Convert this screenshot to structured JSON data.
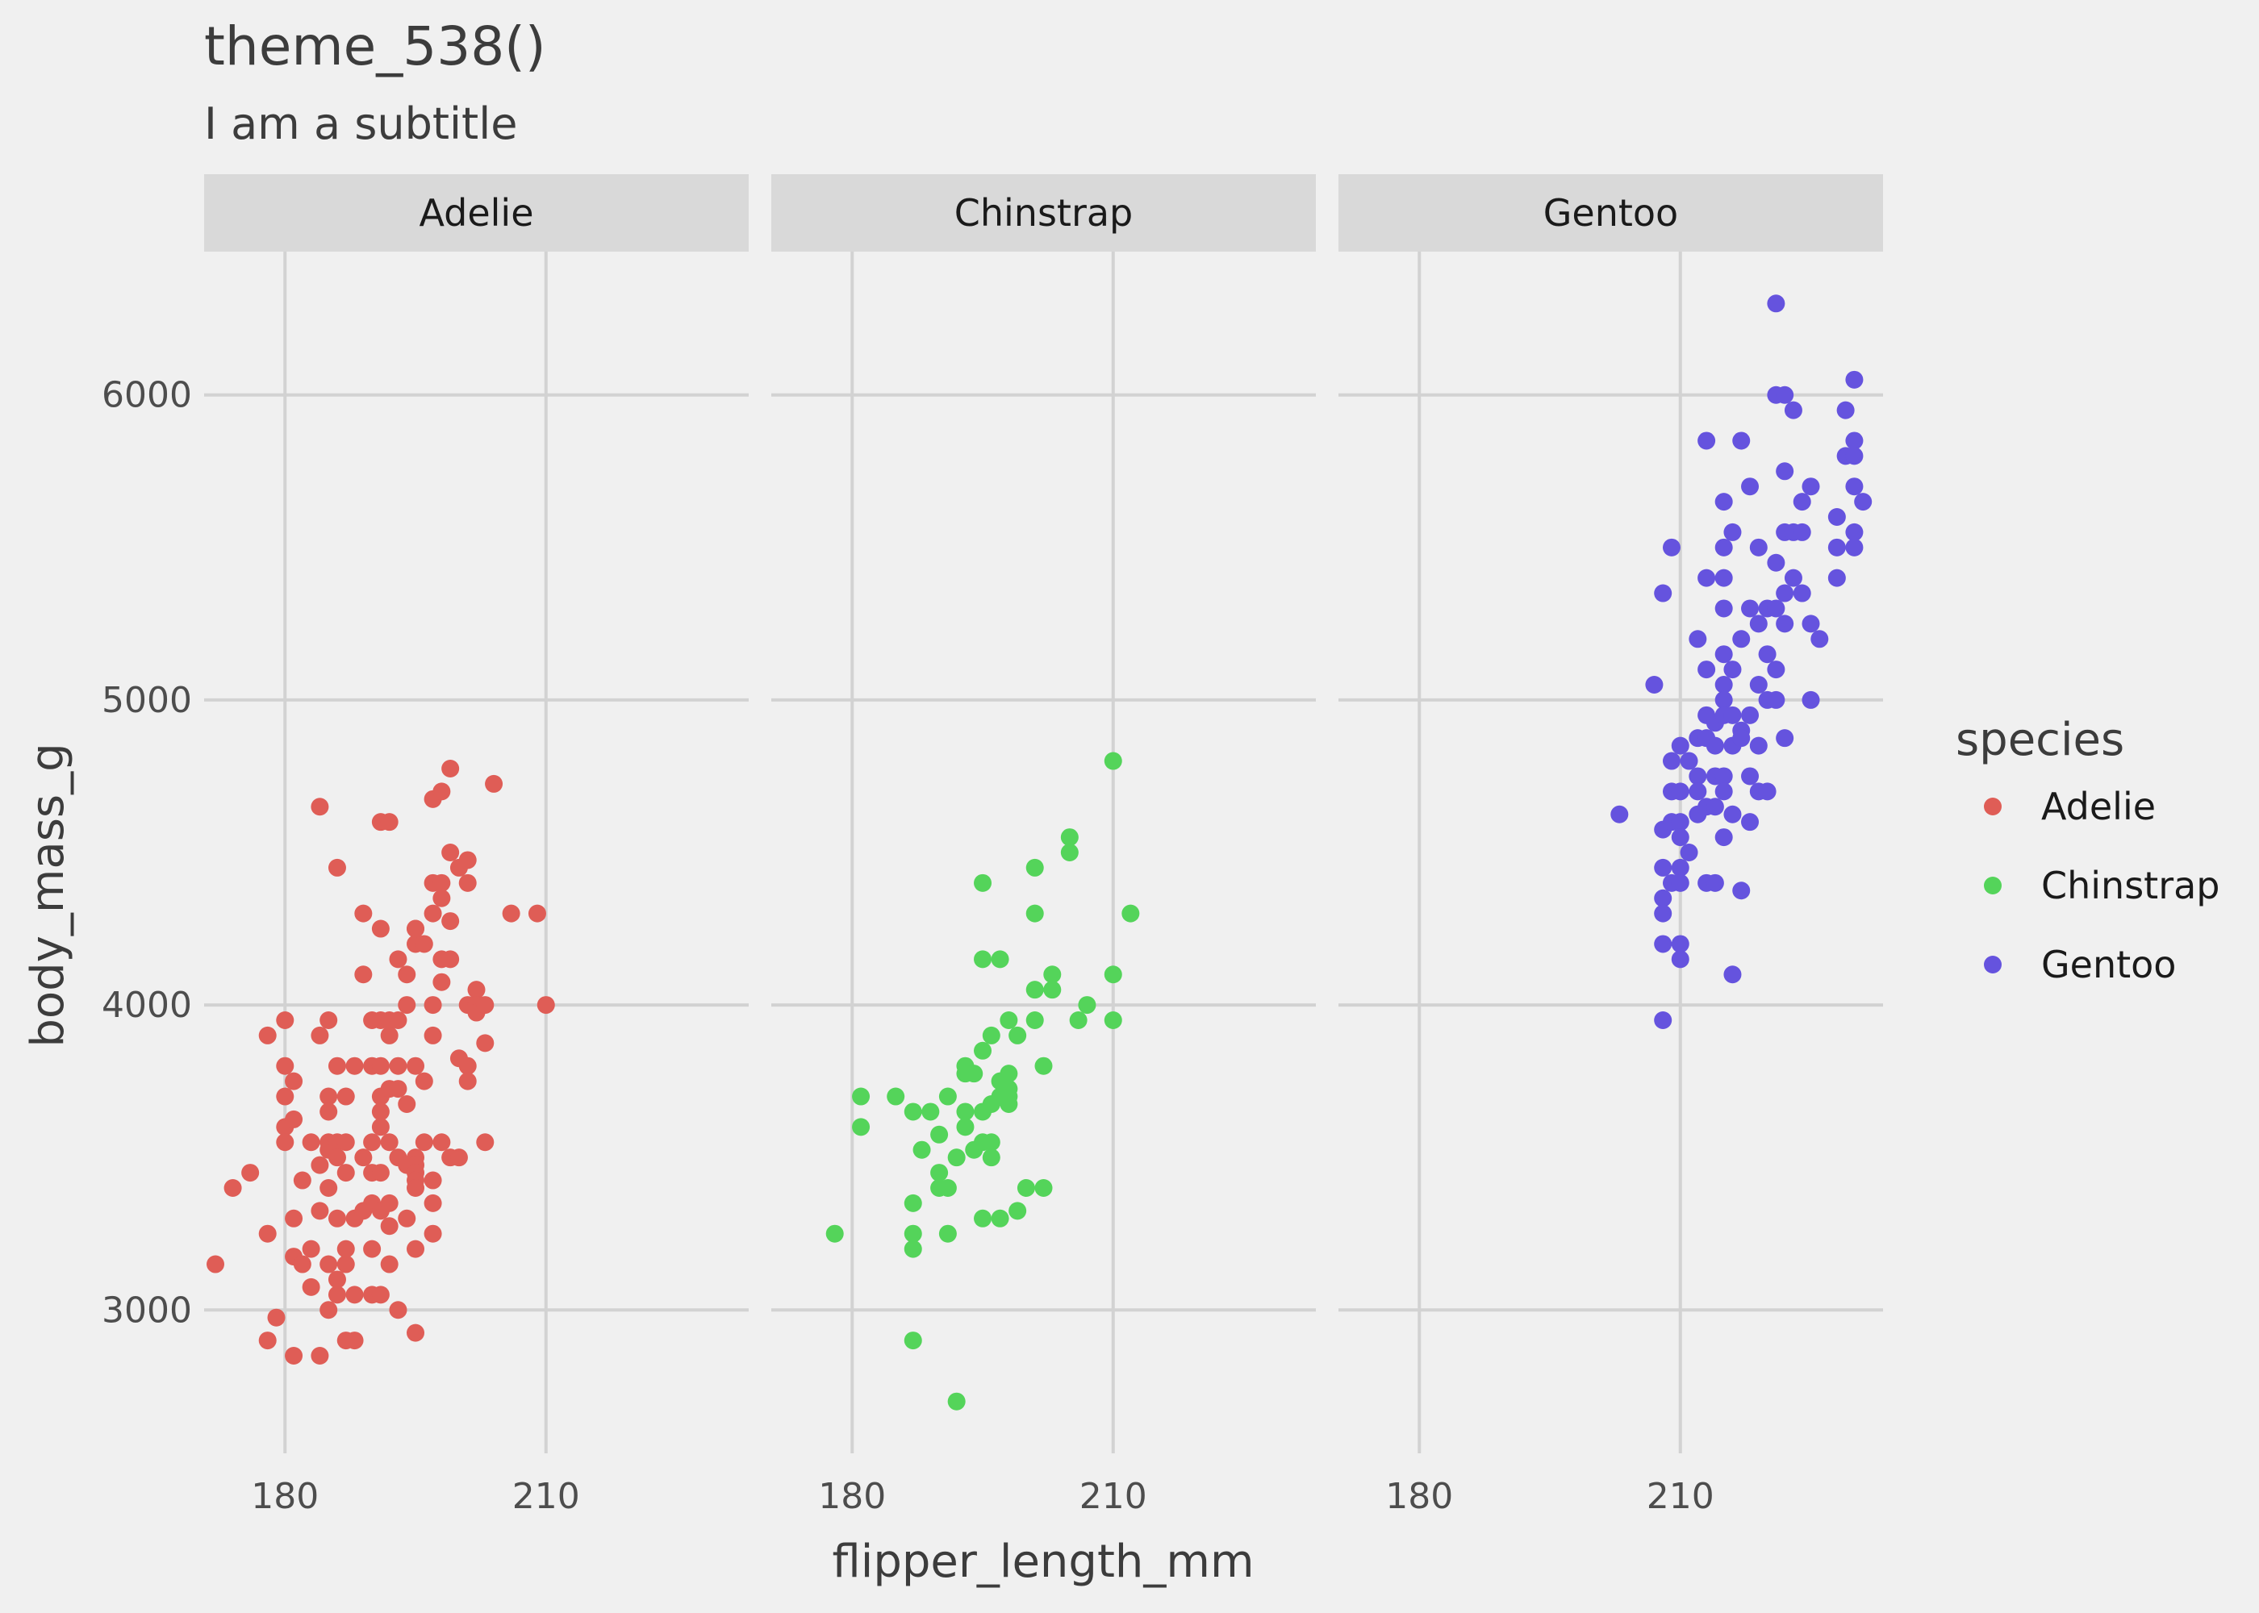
{
  "chart_data": {
    "type": "scatter",
    "title": "theme_538()",
    "subtitle": "I am a subtitle",
    "xlabel": "flipper_length_mm",
    "ylabel": "body_mass_g",
    "xlim": [
      170.7,
      233.3
    ],
    "ylim": [
      2530,
      6470
    ],
    "x_ticks": [
      180,
      210
    ],
    "y_ticks": [
      3000,
      4000,
      5000,
      6000
    ],
    "grid": true,
    "legend": {
      "title": "species",
      "position": "right",
      "entries": [
        {
          "label": "Adelie",
          "color": "#df5d56"
        },
        {
          "label": "Chinstrap",
          "color": "#54d45a"
        },
        {
          "label": "Gentoo",
          "color": "#6553de"
        }
      ]
    },
    "facets": [
      {
        "name": "Adelie",
        "color": "#df5d56",
        "points": [
          [
            172,
            3150
          ],
          [
            174,
            3400
          ],
          [
            176,
            3450
          ],
          [
            178,
            3250
          ],
          [
            178,
            2900
          ],
          [
            178,
            3900
          ],
          [
            179,
            2975
          ],
          [
            180,
            3950
          ],
          [
            180,
            3800
          ],
          [
            180,
            3700
          ],
          [
            180,
            3600
          ],
          [
            180,
            3550
          ],
          [
            181,
            3625
          ],
          [
            181,
            3750
          ],
          [
            181,
            3300
          ],
          [
            181,
            3175
          ],
          [
            181,
            2850
          ],
          [
            182,
            3425
          ],
          [
            182,
            3150
          ],
          [
            183,
            3200
          ],
          [
            183,
            3550
          ],
          [
            183,
            3075
          ],
          [
            184,
            3325
          ],
          [
            184,
            3475
          ],
          [
            184,
            3900
          ],
          [
            184,
            4650
          ],
          [
            184,
            2850
          ],
          [
            185,
            3550
          ],
          [
            185,
            3950
          ],
          [
            185,
            3700
          ],
          [
            185,
            3650
          ],
          [
            185,
            3525
          ],
          [
            185,
            3400
          ],
          [
            185,
            3150
          ],
          [
            185,
            3000
          ],
          [
            186,
            3050
          ],
          [
            186,
            4450
          ],
          [
            186,
            3800
          ],
          [
            186,
            3550
          ],
          [
            186,
            3500
          ],
          [
            186,
            3300
          ],
          [
            186,
            3100
          ],
          [
            187,
            3150
          ],
          [
            187,
            3550
          ],
          [
            187,
            3450
          ],
          [
            187,
            3200
          ],
          [
            187,
            2900
          ],
          [
            187,
            3700
          ],
          [
            188,
            3800
          ],
          [
            188,
            3300
          ],
          [
            188,
            3050
          ],
          [
            188,
            2900
          ],
          [
            189,
            4300
          ],
          [
            189,
            4100
          ],
          [
            189,
            3500
          ],
          [
            189,
            3325
          ],
          [
            190,
            3950
          ],
          [
            190,
            3800
          ],
          [
            190,
            3550
          ],
          [
            190,
            3450
          ],
          [
            190,
            3350
          ],
          [
            190,
            3200
          ],
          [
            190,
            3050
          ],
          [
            191,
            4600
          ],
          [
            191,
            4250
          ],
          [
            191,
            3950
          ],
          [
            191,
            3800
          ],
          [
            191,
            3700
          ],
          [
            191,
            3650
          ],
          [
            191,
            3600
          ],
          [
            191,
            3450
          ],
          [
            191,
            3325
          ],
          [
            191,
            3050
          ],
          [
            192,
            4600
          ],
          [
            192,
            3950
          ],
          [
            192,
            3900
          ],
          [
            192,
            3725
          ],
          [
            192,
            3550
          ],
          [
            192,
            3350
          ],
          [
            192,
            3275
          ],
          [
            192,
            3150
          ],
          [
            193,
            4150
          ],
          [
            193,
            3950
          ],
          [
            193,
            3800
          ],
          [
            193,
            3725
          ],
          [
            193,
            3500
          ],
          [
            193,
            3000
          ],
          [
            194,
            4100
          ],
          [
            194,
            4000
          ],
          [
            194,
            3675
          ],
          [
            194,
            3475
          ],
          [
            194,
            3300
          ],
          [
            195,
            4250
          ],
          [
            195,
            4200
          ],
          [
            195,
            4250
          ],
          [
            195,
            3800
          ],
          [
            195,
            3500
          ],
          [
            195,
            3475
          ],
          [
            195,
            3450
          ],
          [
            195,
            3425
          ],
          [
            195,
            3400
          ],
          [
            195,
            3200
          ],
          [
            195,
            2925
          ],
          [
            196,
            4200
          ],
          [
            196,
            3750
          ],
          [
            196,
            3550
          ],
          [
            197,
            4675
          ],
          [
            197,
            4400
          ],
          [
            197,
            4300
          ],
          [
            197,
            4000
          ],
          [
            197,
            3900
          ],
          [
            197,
            3425
          ],
          [
            197,
            3350
          ],
          [
            197,
            3250
          ],
          [
            198,
            4700
          ],
          [
            198,
            4400
          ],
          [
            198,
            4350
          ],
          [
            198,
            4150
          ],
          [
            198,
            4075
          ],
          [
            198,
            3550
          ],
          [
            199,
            4775
          ],
          [
            199,
            4500
          ],
          [
            199,
            4275
          ],
          [
            199,
            4150
          ],
          [
            199,
            3500
          ],
          [
            200,
            4450
          ],
          [
            200,
            3825
          ],
          [
            200,
            3500
          ],
          [
            201,
            4475
          ],
          [
            201,
            4400
          ],
          [
            201,
            4000
          ],
          [
            201,
            3800
          ],
          [
            201,
            3750
          ],
          [
            202,
            4050
          ],
          [
            202,
            4000
          ],
          [
            202,
            3975
          ],
          [
            203,
            4000
          ],
          [
            203,
            3875
          ],
          [
            203,
            3550
          ],
          [
            204,
            4725
          ],
          [
            206,
            4300
          ],
          [
            209,
            4300
          ],
          [
            210,
            4000
          ]
        ]
      },
      {
        "name": "Chinstrap",
        "color": "#54d45a",
        "points": [
          [
            178,
            3250
          ],
          [
            181,
            3700
          ],
          [
            181,
            3600
          ],
          [
            185,
            3700
          ],
          [
            187,
            3650
          ],
          [
            187,
            3350
          ],
          [
            187,
            3250
          ],
          [
            187,
            3200
          ],
          [
            187,
            2900
          ],
          [
            188,
            3525
          ],
          [
            189,
            3650
          ],
          [
            190,
            3575
          ],
          [
            190,
            3450
          ],
          [
            190,
            3400
          ],
          [
            191,
            3700
          ],
          [
            191,
            3400
          ],
          [
            191,
            3250
          ],
          [
            192,
            2700
          ],
          [
            192,
            3500
          ],
          [
            193,
            3800
          ],
          [
            193,
            3775
          ],
          [
            193,
            3650
          ],
          [
            193,
            3600
          ],
          [
            194,
            3775
          ],
          [
            194,
            3525
          ],
          [
            195,
            4400
          ],
          [
            195,
            4150
          ],
          [
            195,
            3850
          ],
          [
            195,
            3650
          ],
          [
            195,
            3550
          ],
          [
            195,
            3300
          ],
          [
            196,
            3900
          ],
          [
            196,
            3550
          ],
          [
            196,
            3500
          ],
          [
            196,
            3675
          ],
          [
            197,
            4150
          ],
          [
            197,
            3750
          ],
          [
            197,
            3700
          ],
          [
            197,
            3300
          ],
          [
            198,
            3950
          ],
          [
            198,
            3775
          ],
          [
            198,
            3725
          ],
          [
            198,
            3700
          ],
          [
            198,
            3675
          ],
          [
            199,
            3900
          ],
          [
            199,
            3325
          ],
          [
            200,
            3400
          ],
          [
            201,
            4450
          ],
          [
            201,
            4300
          ],
          [
            201,
            4050
          ],
          [
            201,
            3950
          ],
          [
            202,
            3800
          ],
          [
            202,
            3400
          ],
          [
            203,
            4100
          ],
          [
            203,
            4050
          ],
          [
            205,
            4550
          ],
          [
            205,
            4500
          ],
          [
            206,
            3950
          ],
          [
            207,
            4000
          ],
          [
            210,
            4800
          ],
          [
            210,
            4100
          ],
          [
            210,
            3950
          ],
          [
            212,
            4300
          ]
        ]
      },
      {
        "name": "Gentoo",
        "color": "#6553de",
        "points": [
          [
            203,
            4625
          ],
          [
            207,
            5050
          ],
          [
            208,
            5350
          ],
          [
            208,
            4575
          ],
          [
            208,
            4450
          ],
          [
            208,
            4350
          ],
          [
            208,
            4300
          ],
          [
            208,
            4200
          ],
          [
            208,
            3950
          ],
          [
            209,
            5500
          ],
          [
            209,
            4800
          ],
          [
            209,
            4700
          ],
          [
            209,
            4600
          ],
          [
            209,
            4400
          ],
          [
            210,
            4850
          ],
          [
            210,
            4700
          ],
          [
            210,
            4600
          ],
          [
            210,
            4550
          ],
          [
            210,
            4450
          ],
          [
            210,
            4400
          ],
          [
            210,
            4200
          ],
          [
            210,
            4150
          ],
          [
            211,
            4800
          ],
          [
            211,
            4500
          ],
          [
            212,
            5200
          ],
          [
            212,
            4875
          ],
          [
            212,
            4750
          ],
          [
            212,
            4700
          ],
          [
            212,
            4625
          ],
          [
            213,
            5850
          ],
          [
            213,
            5400
          ],
          [
            213,
            5100
          ],
          [
            213,
            4950
          ],
          [
            213,
            4875
          ],
          [
            213,
            4650
          ],
          [
            213,
            4400
          ],
          [
            214,
            4925
          ],
          [
            214,
            4850
          ],
          [
            214,
            4750
          ],
          [
            214,
            4650
          ],
          [
            214,
            4400
          ],
          [
            215,
            5650
          ],
          [
            215,
            5500
          ],
          [
            215,
            5400
          ],
          [
            215,
            5300
          ],
          [
            215,
            5150
          ],
          [
            215,
            5050
          ],
          [
            215,
            5000
          ],
          [
            215,
            4950
          ],
          [
            215,
            4750
          ],
          [
            215,
            4700
          ],
          [
            215,
            4550
          ],
          [
            216,
            5550
          ],
          [
            216,
            5100
          ],
          [
            216,
            4950
          ],
          [
            216,
            4850
          ],
          [
            216,
            4625
          ],
          [
            216,
            4100
          ],
          [
            217,
            5850
          ],
          [
            217,
            5200
          ],
          [
            217,
            4900
          ],
          [
            217,
            4875
          ],
          [
            217,
            4375
          ],
          [
            218,
            5700
          ],
          [
            218,
            5300
          ],
          [
            218,
            4950
          ],
          [
            218,
            4750
          ],
          [
            218,
            4600
          ],
          [
            219,
            5500
          ],
          [
            219,
            5250
          ],
          [
            219,
            5050
          ],
          [
            219,
            4850
          ],
          [
            219,
            4700
          ],
          [
            220,
            5300
          ],
          [
            220,
            5150
          ],
          [
            220,
            5000
          ],
          [
            220,
            4700
          ],
          [
            221,
            6300
          ],
          [
            221,
            6000
          ],
          [
            221,
            5450
          ],
          [
            221,
            5300
          ],
          [
            221,
            5100
          ],
          [
            221,
            5000
          ],
          [
            222,
            6000
          ],
          [
            222,
            5750
          ],
          [
            222,
            5550
          ],
          [
            222,
            5350
          ],
          [
            222,
            5250
          ],
          [
            222,
            4875
          ],
          [
            223,
            5950
          ],
          [
            223,
            5550
          ],
          [
            223,
            5400
          ],
          [
            224,
            5650
          ],
          [
            224,
            5550
          ],
          [
            224,
            5350
          ],
          [
            225,
            5700
          ],
          [
            225,
            5250
          ],
          [
            225,
            5000
          ],
          [
            226,
            5200
          ],
          [
            228,
            5600
          ],
          [
            228,
            5500
          ],
          [
            228,
            5400
          ],
          [
            229,
            5950
          ],
          [
            229,
            5800
          ],
          [
            230,
            6050
          ],
          [
            230,
            5850
          ],
          [
            230,
            5800
          ],
          [
            230,
            5700
          ],
          [
            230,
            5550
          ],
          [
            230,
            5500
          ],
          [
            231,
            5650
          ]
        ]
      }
    ]
  }
}
